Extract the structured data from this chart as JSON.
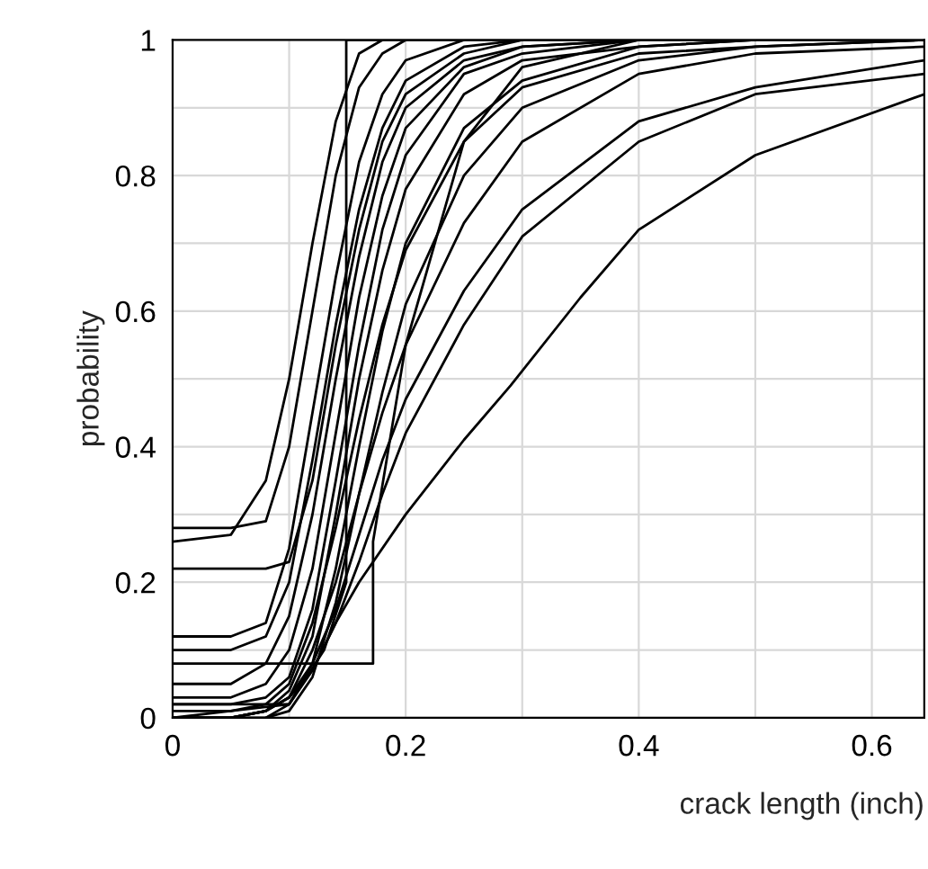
{
  "chart_data": {
    "type": "line",
    "xlabel": "crack length (inch)",
    "ylabel": "probability",
    "x": [
      0,
      0.05,
      0.08,
      0.1,
      0.12,
      0.14,
      0.16,
      0.18,
      0.2,
      0.25,
      0.3,
      0.4,
      0.5,
      0.645
    ],
    "series": [
      {
        "color": "#000000",
        "values": [
          0.26,
          0.27,
          0.35,
          0.5,
          0.7,
          0.88,
          0.98,
          1,
          null,
          null,
          null,
          null,
          null,
          null
        ]
      },
      {
        "color": "#000000",
        "values": [
          0.28,
          0.28,
          0.29,
          0.4,
          0.6,
          0.8,
          0.93,
          0.98,
          1,
          null,
          null,
          null,
          null,
          null
        ]
      },
      {
        "color": "#000000",
        "values": [
          0.22,
          0.22,
          0.22,
          0.23,
          0.35,
          0.55,
          0.72,
          0.85,
          0.92,
          0.98,
          1,
          null,
          null,
          null
        ]
      },
      {
        "color": "#000000",
        "values": [
          0.12,
          0.12,
          0.14,
          0.25,
          0.45,
          0.65,
          0.82,
          0.92,
          0.97,
          1,
          null,
          null,
          null,
          null
        ]
      },
      {
        "color": "#000000",
        "values": [
          0.1,
          0.1,
          0.12,
          0.2,
          0.38,
          0.58,
          0.75,
          0.87,
          0.94,
          0.99,
          1,
          null,
          null,
          null
        ]
      },
      {
        "color": "#000000",
        "values": [
          0.05,
          0.05,
          0.08,
          0.15,
          0.3,
          0.5,
          0.68,
          0.82,
          0.9,
          0.97,
          0.99,
          1,
          null,
          null
        ]
      },
      {
        "color": "#000000",
        "values": [
          0.03,
          0.03,
          0.05,
          0.1,
          0.22,
          0.42,
          0.62,
          0.77,
          0.87,
          0.96,
          0.99,
          1,
          null,
          null
        ]
      },
      {
        "color": "#000000",
        "values": [
          0.02,
          0.02,
          0.03,
          0.06,
          0.16,
          0.35,
          0.55,
          0.72,
          0.83,
          0.95,
          0.98,
          1,
          null,
          null
        ]
      },
      {
        "color": "#000000",
        "values": [
          0,
          0,
          0.01,
          0.04,
          0.12,
          0.3,
          0.5,
          0.66,
          0.78,
          0.92,
          0.97,
          0.99,
          1,
          null
        ]
      },
      {
        "color": "#000000",
        "values": [
          null,
          0,
          0,
          0.02,
          0.08,
          0.22,
          0.4,
          0.57,
          0.7,
          0.87,
          0.94,
          0.99,
          1,
          null
        ]
      },
      {
        "color": "#000000",
        "values": [
          null,
          null,
          0,
          0.01,
          0.06,
          0.17,
          0.33,
          0.48,
          0.61,
          0.8,
          0.9,
          0.97,
          0.99,
          1
        ]
      },
      {
        "color": "#000000",
        "values": [
          0.01,
          0.01,
          0.02,
          0.05,
          0.14,
          0.28,
          0.44,
          0.58,
          0.69,
          0.85,
          0.93,
          0.98,
          0.99,
          1
        ]
      },
      {
        "color": "#000000",
        "values": [
          0,
          0,
          0.01,
          0.03,
          0.1,
          0.2,
          0.33,
          0.45,
          0.55,
          0.73,
          0.85,
          0.95,
          0.98,
          0.99
        ]
      },
      {
        "color": "#000000",
        "values": [
          0,
          0,
          0.01,
          0.03,
          0.08,
          0.16,
          0.27,
          0.38,
          0.47,
          0.63,
          0.75,
          0.88,
          0.93,
          0.97
        ]
      },
      {
        "color": "#000000",
        "values": [
          0,
          0,
          0.01,
          0.03,
          0.07,
          0.14,
          0.23,
          0.33,
          0.42,
          0.58,
          0.71,
          0.85,
          0.92,
          0.95
        ]
      },
      {
        "color": "#000000",
        "x": [
          0,
          0.1,
          0.12,
          0.14,
          0.16,
          0.2,
          0.25,
          0.29,
          0.35,
          0.4,
          0.5,
          0.645
        ],
        "values": [
          0,
          0.02,
          0.07,
          0.14,
          0.2,
          0.3,
          0.41,
          0.49,
          0.62,
          0.72,
          0.83,
          0.92
        ]
      },
      {
        "color": "#000000",
        "x": [
          0,
          0.172,
          0.172,
          0.2,
          0.25,
          0.3,
          0.4
        ],
        "values": [
          0.08,
          0.08,
          0.26,
          0.55,
          0.85,
          0.96,
          1
        ]
      },
      {
        "color": "#000000",
        "x": [
          0,
          0.1,
          0.13,
          0.149,
          0.149,
          0.645
        ],
        "values": [
          0.02,
          0.02,
          0.1,
          0.2,
          1,
          1
        ]
      }
    ],
    "xlim": [
      0,
      0.645
    ],
    "ylim": [
      0,
      1
    ],
    "xticks": [
      0,
      {
        "value": 0.1,
        "label": null
      },
      0.2,
      {
        "value": 0.3,
        "label": null
      },
      0.4,
      {
        "value": 0.5,
        "label": null
      },
      0.6
    ],
    "yticks": [
      0,
      {
        "value": 0.1,
        "label": null
      },
      0.2,
      {
        "value": 0.3,
        "label": null
      },
      0.4,
      {
        "value": 0.5,
        "label": null
      },
      0.6,
      {
        "value": 0.7,
        "label": null
      },
      0.8,
      {
        "value": 0.9,
        "label": null
      },
      1
    ],
    "grid": true,
    "legend": false,
    "marker": "none",
    "line_style": "solid"
  }
}
